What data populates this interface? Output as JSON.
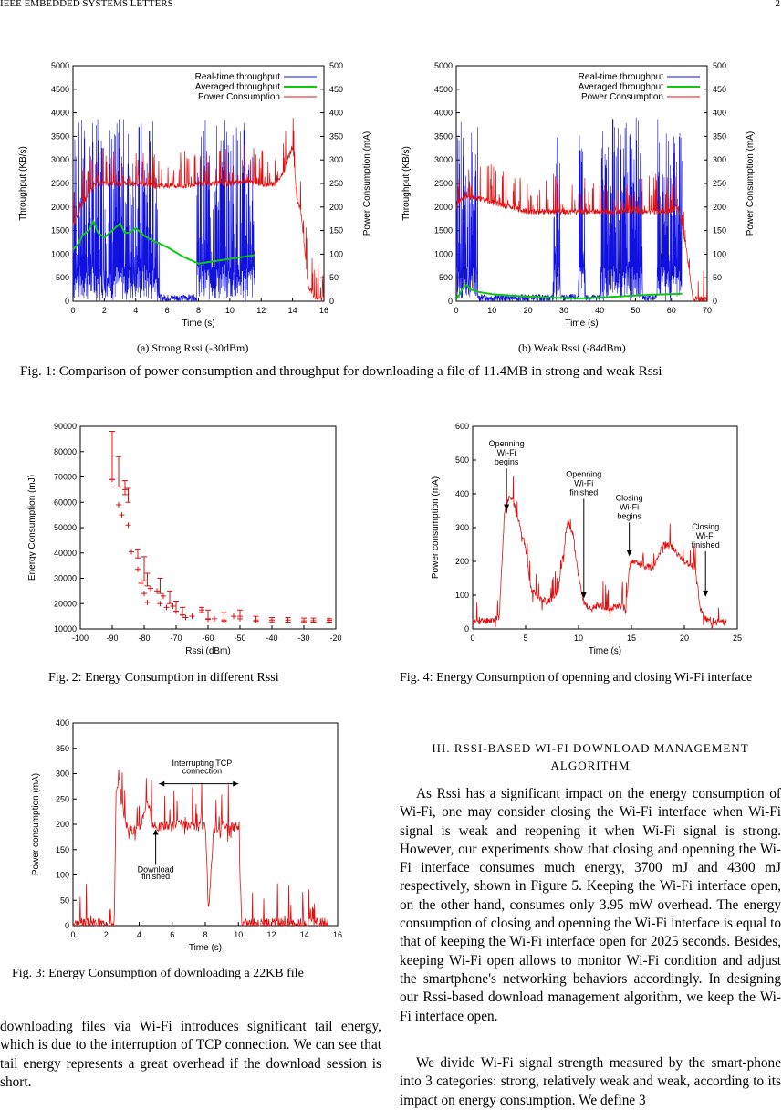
{
  "header": {
    "journal": "IEEE EMBEDDED SYSTEMS LETTERS",
    "page_number": "2"
  },
  "fig1": {
    "caption": "Fig. 1: Comparison of power consumption and throughput for downloading a file of 11.4MB in strong and weak Rssi",
    "sub_a": "(a) Strong Rssi (-30dBm)",
    "sub_b": "(b) Weak Rssi (-84dBm)"
  },
  "fig2": {
    "caption": "Fig. 2: Energy Consumption in different Rssi"
  },
  "fig3": {
    "caption": "Fig. 3: Energy Consumption of downloading a 22KB file"
  },
  "fig4": {
    "caption": "Fig. 4: Energy Consumption of openning and closing Wi-Fi interface"
  },
  "section": {
    "number": "III.",
    "title_line1": "RSSI-BASED WI-FI DOWNLOAD MANAGEMENT",
    "title_line2": "ALGORITHM"
  },
  "paragraphs": {
    "left_cont": "downloading files via Wi-Fi introduces significant tail energy, which is due to the interruption of TCP connection. We can see that tail energy represents a great overhead if the download session is short.",
    "p1": "As Rssi has a significant impact on the energy consumption of Wi-Fi, one may consider closing the Wi-Fi interface when Wi-Fi signal is weak and reopening it when Wi-Fi signal is strong. However, our experiments show that closing and openning the Wi-Fi interface consumes much energy, 3700 mJ and 4300 mJ respectively, shown in Figure 5. Keeping the Wi-Fi interface open, on the other hand, consumes only 3.95 mW overhead. The energy consumption of closing and openning the Wi-Fi interface is equal to that of keeping the Wi-Fi interface open for 2025 seconds. Besides, keeping Wi-Fi open allows to monitor Wi-Fi condition and adjust the smartphone's networking behaviors accordingly. In designing our Rssi-based download management algorithm, we keep the Wi-Fi interface open.",
    "p2": "We divide Wi-Fi signal strength measured by the smart-phone into 3 categories: strong, relatively weak and weak, according to its impact on energy consumption. We define 3"
  },
  "chart_data": [
    {
      "id": "fig1a",
      "type": "line",
      "xlabel": "Time (s)",
      "ylabel": "Throughput (KB/s)",
      "y2label": "Power Consumption (mA)",
      "xlim": [
        0,
        16
      ],
      "ylim": [
        0,
        5000
      ],
      "y2lim": [
        0,
        500
      ],
      "xticks": [
        "0",
        "2",
        "4",
        "6",
        "8",
        "10",
        "12",
        "14",
        "16"
      ],
      "yticks": [
        "0",
        "500",
        "1000",
        "1500",
        "2000",
        "2500",
        "3000",
        "3500",
        "4000",
        "4500",
        "5000"
      ],
      "y2ticks": [
        "0",
        "50",
        "100",
        "150",
        "200",
        "250",
        "300",
        "350",
        "400",
        "450",
        "500"
      ],
      "legend": [
        "Real-time throughput",
        "Averaged throughput",
        "Power Consumption"
      ],
      "legend_position": "top-right",
      "colors": {
        "realtime": "#1010e0",
        "averaged": "#10c810",
        "power": "#e01010"
      },
      "averaged": {
        "x": [
          0,
          0.3,
          0.6,
          1,
          1.3,
          1.6,
          2,
          2.5,
          3,
          3.3,
          3.6,
          4,
          4.5,
          5,
          6,
          7,
          8,
          9,
          10,
          11,
          11.6
        ],
        "y": [
          1100,
          1200,
          1400,
          1500,
          1700,
          1450,
          1350,
          1500,
          1650,
          1450,
          1450,
          1550,
          1400,
          1300,
          1150,
          950,
          800,
          850,
          900,
          950,
          980
        ]
      },
      "power": {
        "x": [
          0,
          0.5,
          1,
          1.5,
          2,
          3,
          4,
          5,
          6,
          7,
          8,
          9,
          10,
          11,
          12,
          13,
          13.5,
          14,
          14.3,
          14.5,
          15,
          15.5,
          16
        ],
        "y": [
          160,
          200,
          230,
          250,
          250,
          250,
          250,
          245,
          245,
          245,
          250,
          250,
          250,
          255,
          248,
          250,
          280,
          330,
          210,
          200,
          30,
          5,
          5
        ]
      }
    },
    {
      "id": "fig1b",
      "type": "line",
      "xlabel": "Time (s)",
      "ylabel": "Throughput (KB/s)",
      "y2label": "Power Consumption (mA)",
      "xlim": [
        0,
        70
      ],
      "ylim": [
        0,
        5000
      ],
      "y2lim": [
        0,
        500
      ],
      "xticks": [
        "0",
        "10",
        "20",
        "30",
        "40",
        "50",
        "60",
        "70"
      ],
      "yticks": [
        "0",
        "500",
        "1000",
        "1500",
        "2000",
        "2500",
        "3000",
        "3500",
        "4000",
        "4500",
        "5000"
      ],
      "y2ticks": [
        "0",
        "50",
        "100",
        "150",
        "200",
        "250",
        "300",
        "350",
        "400",
        "450",
        "500"
      ],
      "legend": [
        "Real-time throughput",
        "Averaged throughput",
        "Power Consumption"
      ],
      "legend_position": "top-right",
      "colors": {
        "realtime": "#1010e0",
        "averaged": "#10c810",
        "power": "#e01010"
      },
      "averaged": {
        "x": [
          0,
          1,
          2,
          3,
          4,
          6,
          10,
          15,
          20,
          25,
          30,
          35,
          40,
          45,
          50,
          55,
          60,
          63
        ],
        "y": [
          50,
          150,
          300,
          350,
          250,
          200,
          150,
          120,
          100,
          80,
          70,
          60,
          80,
          100,
          120,
          140,
          150,
          160
        ]
      },
      "power": {
        "x": [
          0,
          2,
          5,
          10,
          20,
          30,
          40,
          50,
          60,
          62,
          64,
          66
        ],
        "y": [
          200,
          220,
          220,
          210,
          190,
          190,
          190,
          190,
          190,
          200,
          120,
          5
        ]
      }
    },
    {
      "id": "fig2",
      "type": "scatter",
      "xlabel": "Rssi (dBm)",
      "ylabel": "Energy Consumption (mJ)",
      "xlim": [
        -100,
        -20
      ],
      "ylim": [
        10000,
        90000
      ],
      "xticks": [
        "-100",
        "-90",
        "-80",
        "-70",
        "-60",
        "-50",
        "-40",
        "-30",
        "-20"
      ],
      "yticks": [
        "10000",
        "20000",
        "30000",
        "40000",
        "50000",
        "60000",
        "70000",
        "80000",
        "90000"
      ],
      "points": {
        "x": [
          -90,
          -88,
          -87,
          -86,
          -85,
          -84,
          -82,
          -81,
          -80,
          -79,
          -78,
          -76,
          -75,
          -74,
          -73,
          -71,
          -70,
          -68,
          -67,
          -65,
          -62,
          -60,
          -58,
          -55,
          -52,
          -50,
          -45,
          -40,
          -35,
          -30,
          -27,
          -22
        ],
        "y": [
          69000,
          59000,
          55000,
          65000,
          51000,
          40500,
          33500,
          28000,
          24000,
          20500,
          26000,
          25000,
          20000,
          23000,
          18500,
          19000,
          17000,
          15500,
          14500,
          15000,
          17500,
          13800,
          14000,
          13500,
          15000,
          14000,
          13500,
          13500,
          13500,
          13200,
          13300,
          13400
        ]
      },
      "errorbars": {
        "x": [
          -90,
          -88,
          -86,
          -85,
          -82,
          -80,
          -79,
          -75,
          -72,
          -70,
          -68,
          -62,
          -60,
          -55,
          -50,
          -45,
          -40,
          -35,
          -30,
          -27,
          -22
        ],
        "low": [
          69000,
          66000,
          63000,
          60000,
          38000,
          29000,
          27000,
          24000,
          20000,
          17000,
          15500,
          16500,
          14000,
          13000,
          15000,
          13000,
          12800,
          12700,
          12600,
          12700,
          12700
        ],
        "high": [
          88000,
          78000,
          68500,
          65500,
          41500,
          38500,
          32000,
          30000,
          25000,
          21000,
          18500,
          18500,
          17500,
          16500,
          17500,
          15000,
          14500,
          14500,
          14300,
          14300,
          14000
        ]
      },
      "color": "#e01010"
    },
    {
      "id": "fig3",
      "type": "line",
      "xlabel": "Time (s)",
      "ylabel": "Power consumption (mA)",
      "xlim": [
        0,
        16
      ],
      "ylim": [
        0,
        400
      ],
      "xticks": [
        "0",
        "2",
        "4",
        "6",
        "8",
        "10",
        "12",
        "14",
        "16"
      ],
      "yticks": [
        "0",
        "50",
        "100",
        "150",
        "200",
        "250",
        "300",
        "350",
        "400"
      ],
      "annotations": [
        "Interrupting TCP connection",
        "Download finished"
      ],
      "series": {
        "x": [
          0,
          2.5,
          2.6,
          2.8,
          3,
          3.2,
          3.5,
          4,
          4.5,
          4.8,
          5,
          5.5,
          6,
          6.5,
          7,
          7.5,
          8,
          8.2,
          8.5,
          9,
          9.5,
          10,
          10.2,
          11,
          12,
          13,
          14,
          15,
          15.5
        ],
        "y": [
          5,
          5,
          260,
          280,
          240,
          200,
          190,
          190,
          250,
          200,
          195,
          195,
          200,
          200,
          195,
          195,
          200,
          30,
          190,
          200,
          195,
          195,
          5,
          5,
          5,
          5,
          5,
          5,
          5
        ]
      },
      "color": "#e01010"
    },
    {
      "id": "fig4",
      "type": "line",
      "xlabel": "Time (s)",
      "ylabel": "Power consumption (mA)",
      "xlim": [
        0,
        25
      ],
      "ylim": [
        0,
        600
      ],
      "xticks": [
        "0",
        "5",
        "10",
        "15",
        "20",
        "25"
      ],
      "yticks": [
        "0",
        "100",
        "200",
        "300",
        "400",
        "500",
        "600"
      ],
      "annotations": [
        "Openning Wi-Fi begins",
        "Openning Wi-Fi finished",
        "Closing Wi-Fi begins",
        "Closing Wi-Fi finished"
      ],
      "series": {
        "x": [
          0,
          2.5,
          3,
          3.5,
          4,
          4.5,
          5,
          5.5,
          6,
          7,
          8,
          9,
          9.5,
          10,
          10.5,
          11,
          12,
          13,
          14,
          14.5,
          14.8,
          15,
          16,
          17,
          18,
          19,
          20,
          21,
          21.5,
          22,
          23,
          24
        ],
        "y": [
          20,
          30,
          340,
          400,
          360,
          300,
          240,
          120,
          100,
          80,
          100,
          320,
          280,
          150,
          80,
          60,
          70,
          60,
          70,
          60,
          180,
          200,
          190,
          180,
          250,
          240,
          200,
          180,
          60,
          30,
          20,
          20
        ]
      },
      "color": "#e01010"
    }
  ]
}
